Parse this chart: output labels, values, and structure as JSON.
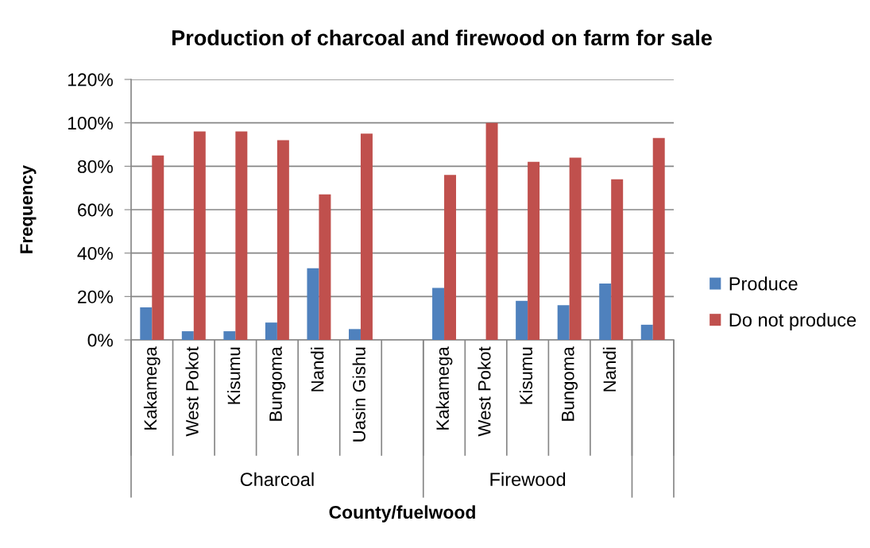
{
  "chart_data": {
    "type": "bar",
    "title": "Production of charcoal and firewood on farm for sale",
    "xlabel": "County/fuelwood",
    "ylabel": "Frequency",
    "categories": [
      "Kakamega",
      "West Pokot",
      "Kisumu",
      "Bungoma",
      "Nandi",
      "Uasin Gishu",
      null,
      "Kakamega",
      "West Pokot",
      "Kisumu",
      "Bungoma",
      "Nandi",
      null
    ],
    "series": [
      {
        "name": "Produce",
        "color": "#4f81bd",
        "values": [
          15,
          4,
          4,
          8,
          33,
          5,
          null,
          24,
          0,
          18,
          16,
          26,
          7
        ]
      },
      {
        "name": "Do not produce",
        "color": "#c0504d",
        "values": [
          85,
          96,
          96,
          92,
          67,
          95,
          null,
          76,
          100,
          82,
          84,
          74,
          93
        ]
      }
    ],
    "ylim": [
      0,
      120
    ],
    "yticks": [
      {
        "value": 0,
        "label": "0%"
      },
      {
        "value": 20,
        "label": "20%"
      },
      {
        "value": 40,
        "label": "40%"
      },
      {
        "value": 60,
        "label": "60%"
      },
      {
        "value": 80,
        "label": "80%"
      },
      {
        "value": 100,
        "label": "100%"
      },
      {
        "value": 120,
        "label": "120%"
      }
    ],
    "grid": "y",
    "legend": "right",
    "annotations": [
      "Charcoal",
      "Firewood"
    ]
  }
}
